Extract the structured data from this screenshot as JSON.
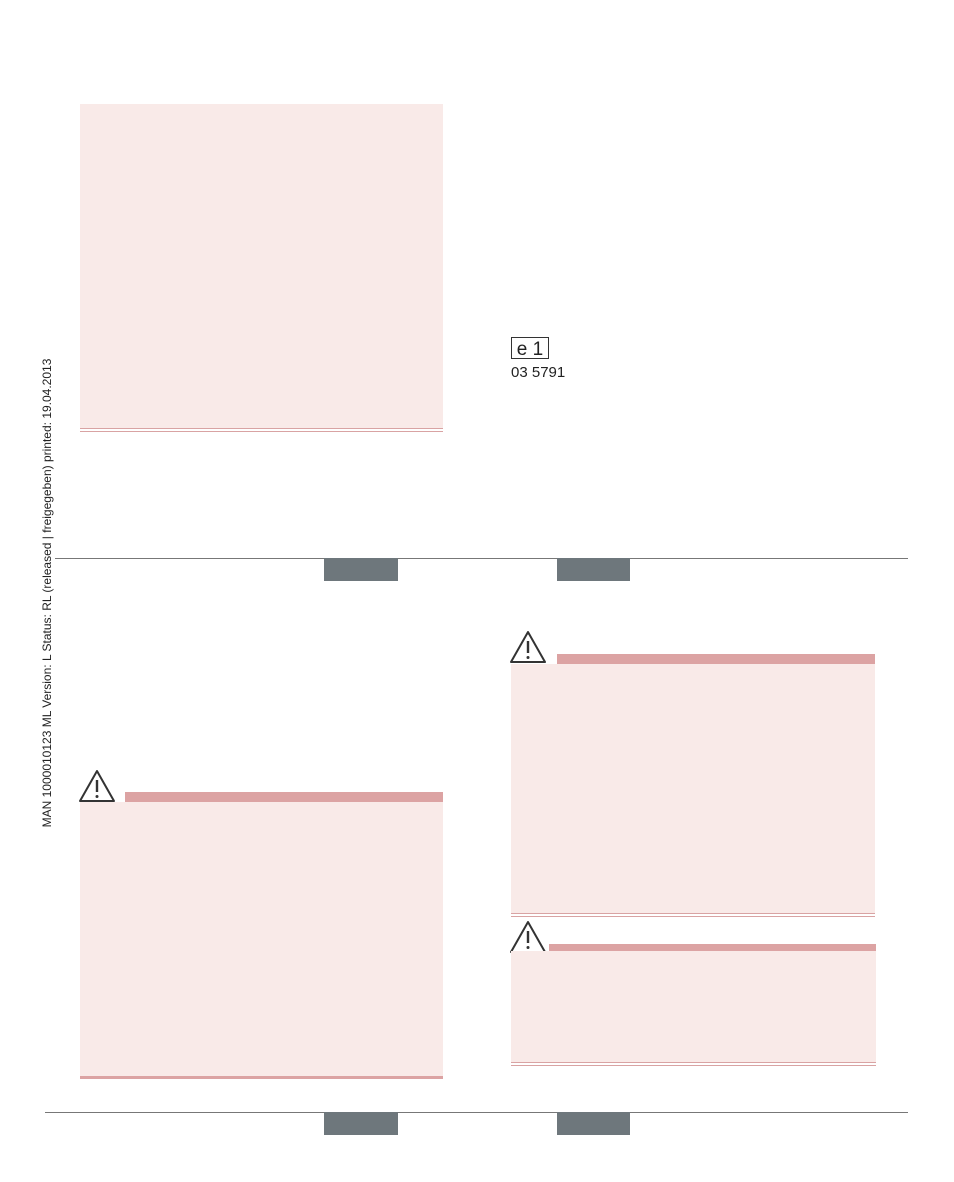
{
  "sidebar": "MAN  1000010123  ML  Version: L  Status: RL (released | freigegeben)  printed: 19.04.2013",
  "approval": {
    "mark": "e 1",
    "number": "03 5791"
  }
}
